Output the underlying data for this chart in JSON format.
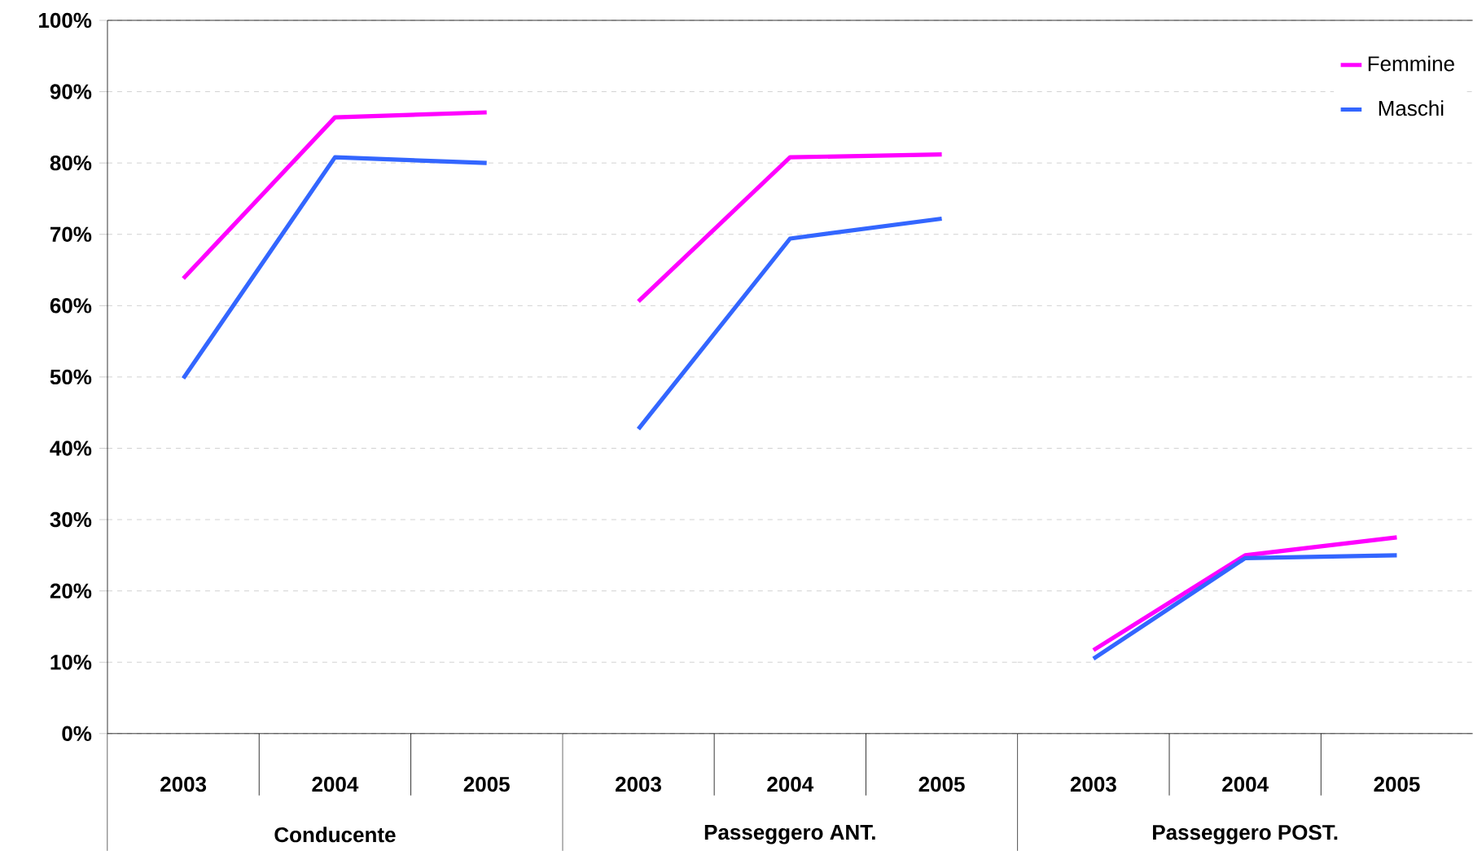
{
  "chart_data": [
    {
      "type": "line",
      "xlabel": "Conducente",
      "categories": [
        "2003",
        "2004",
        "2005"
      ],
      "series": [
        {
          "color": "#ff00ff",
          "values": [
            63.8,
            86.4,
            87.1
          ]
        },
        {
          "color": "#3366ff",
          "values": [
            49.8,
            80.8,
            80.0
          ]
        }
      ],
      "ylim": [
        0,
        100
      ],
      "yticks": [
        {
          "value": 0,
          "label": "0%"
        },
        {
          "value": 10,
          "label": "10%"
        },
        {
          "value": 20,
          "label": "20%"
        },
        {
          "value": 30,
          "label": "30%"
        },
        {
          "value": 40,
          "label": "40%"
        },
        {
          "value": 50,
          "label": "50%"
        },
        {
          "value": 60,
          "label": "60%"
        },
        {
          "value": 70,
          "label": "70%"
        },
        {
          "value": 80,
          "label": "80%"
        },
        {
          "value": 90,
          "label": "90%"
        },
        {
          "value": 100,
          "label": "100%"
        }
      ],
      "grid": "y",
      "line_style": "solid"
    },
    {
      "type": "line",
      "xlabel": "Passeggero ANT.",
      "categories": [
        "2003",
        "2004",
        "2005"
      ],
      "series": [
        {
          "color": "#ff00ff",
          "values": [
            60.6,
            80.8,
            81.2
          ]
        },
        {
          "color": "#3366ff",
          "values": [
            42.7,
            69.4,
            72.2
          ]
        }
      ],
      "ylim": [
        0,
        100
      ],
      "yticks": [
        {
          "value": 0,
          "label": null
        },
        {
          "value": 10,
          "label": null
        },
        {
          "value": 20,
          "label": null
        },
        {
          "value": 30,
          "label": null
        },
        {
          "value": 40,
          "label": null
        },
        {
          "value": 50,
          "label": null
        },
        {
          "value": 60,
          "label": null
        },
        {
          "value": 70,
          "label": null
        },
        {
          "value": 80,
          "label": null
        },
        {
          "value": 90,
          "label": null
        },
        {
          "value": 100,
          "label": null
        }
      ],
      "tick_labels": "x",
      "grid": "y",
      "line_style": "solid"
    },
    {
      "type": "line",
      "xlabel": "Passeggero POST.",
      "categories": [
        "2003",
        "2004",
        "2005"
      ],
      "series": [
        {
          "name": "Femmine",
          "color": "#ff00ff",
          "values": [
            11.7,
            25.0,
            27.5
          ]
        },
        {
          "name": "Maschi",
          "color": "#3366ff",
          "values": [
            10.5,
            24.6,
            25.0
          ]
        }
      ],
      "ylim": [
        0,
        100
      ],
      "yticks": [
        {
          "value": 0,
          "label": null
        },
        {
          "value": 10,
          "label": null
        },
        {
          "value": 20,
          "label": null
        },
        {
          "value": 30,
          "label": null
        },
        {
          "value": 40,
          "label": null
        },
        {
          "value": 50,
          "label": null
        },
        {
          "value": 60,
          "label": null
        },
        {
          "value": 70,
          "label": null
        },
        {
          "value": 80,
          "label": null
        },
        {
          "value": 90,
          "label": null
        },
        {
          "value": 100,
          "label": null
        }
      ],
      "tick_labels": "x",
      "grid": "y",
      "legend": "top right",
      "line_style": "solid"
    }
  ]
}
